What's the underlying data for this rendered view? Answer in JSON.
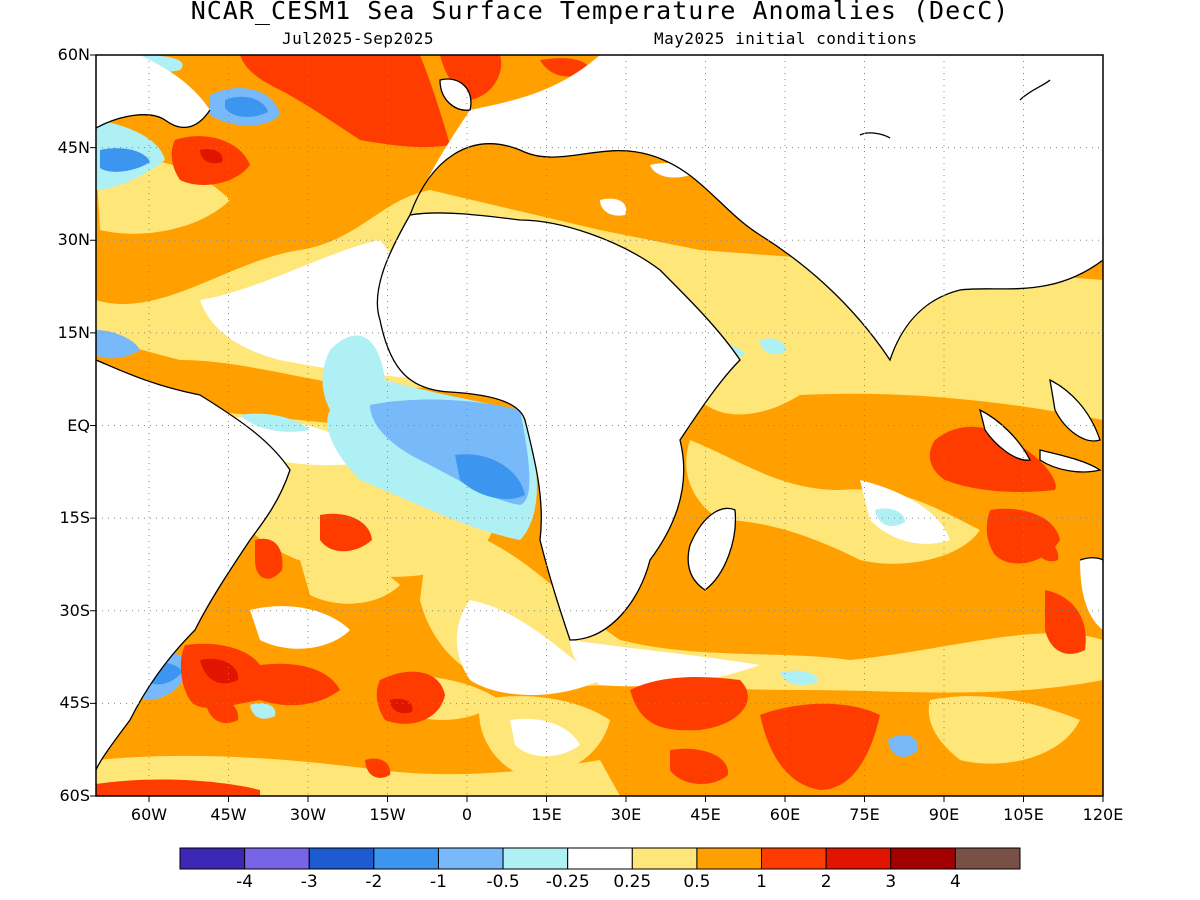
{
  "title": "NCAR_CESM1 Sea Surface Temperature Anomalies (DecC)",
  "subtitle_left": "Jul2025-Sep2025",
  "subtitle_right": "May2025 initial conditions",
  "map": {
    "projection": "equirectangular",
    "lon_range": [
      -70,
      120
    ],
    "lat_range": [
      -60,
      60
    ],
    "grid": "dotted",
    "lat_ticks": [
      {
        "lat": 60,
        "label": "60N"
      },
      {
        "lat": 45,
        "label": "45N"
      },
      {
        "lat": 30,
        "label": "30N"
      },
      {
        "lat": 15,
        "label": "15N"
      },
      {
        "lat": 0,
        "label": "EQ"
      },
      {
        "lat": -15,
        "label": "15S"
      },
      {
        "lat": -30,
        "label": "30S"
      },
      {
        "lat": -45,
        "label": "45S"
      },
      {
        "lat": -60,
        "label": "60S"
      }
    ],
    "lon_ticks": [
      {
        "lon": -60,
        "label": "60W"
      },
      {
        "lon": -45,
        "label": "45W"
      },
      {
        "lon": -30,
        "label": "30W"
      },
      {
        "lon": -15,
        "label": "15W"
      },
      {
        "lon": 0,
        "label": "0"
      },
      {
        "lon": 15,
        "label": "15E"
      },
      {
        "lon": 30,
        "label": "30E"
      },
      {
        "lon": 45,
        "label": "45E"
      },
      {
        "lon": 60,
        "label": "60E"
      },
      {
        "lon": 75,
        "label": "75E"
      },
      {
        "lon": 90,
        "label": "90E"
      },
      {
        "lon": 105,
        "label": "105E"
      },
      {
        "lon": 120,
        "label": "120E"
      }
    ]
  },
  "colorbar": {
    "colors": [
      "#3c28b4",
      "#7864e6",
      "#1e5ad2",
      "#3c96f0",
      "#78b9fa",
      "#aff0f5",
      "#ffffff",
      "#ffe678",
      "#ffa000",
      "#ff3c00",
      "#e11400",
      "#a50000",
      "#785046"
    ],
    "labels": [
      "-4",
      "-3",
      "-2",
      "-1",
      "-0.5",
      "-0.25",
      "0.25",
      "0.5",
      "1",
      "2",
      "3",
      "4"
    ]
  }
}
